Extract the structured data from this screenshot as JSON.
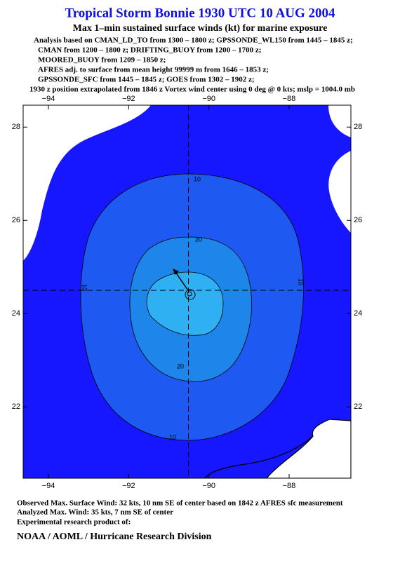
{
  "header": {
    "title": "Tropical Storm Bonnie 1930 UTC 10 AUG 2004",
    "subtitle": "Max 1–min sustained surface winds (kt) for marine exposure",
    "lines": [
      "Analysis based on  CMAN_LD_TO from 1300 – 1800 z;  GPSSONDE_WL150 from 1445 – 1845 z;",
      "CMAN from 1200 – 1800 z;  DRIFTING_BUOY from 1200 – 1700 z;",
      "MOORED_BUOY from 1209 – 1850 z;",
      "AFRES adj. to surface from mean height 99999 m from 1646 – 1853 z;",
      "GPSSONDE_SFC from 1445 – 1845 z;  GOES from 1302 – 1902 z;",
      "1930 z position extrapolated from 1846 z Vortex wind center using 0 deg @ 0 kts; mslp = 1004.0 mb"
    ]
  },
  "map": {
    "xlim": [
      -94.63,
      -86.46
    ],
    "ylim": [
      20.47,
      28.47
    ],
    "xticks": [
      {
        "value": -94,
        "label": "−94"
      },
      {
        "value": -92,
        "label": "−92"
      },
      {
        "value": -90,
        "label": "−90"
      },
      {
        "value": -88,
        "label": "−88"
      }
    ],
    "yticks": [
      22,
      24,
      26,
      28
    ],
    "center": {
      "lon": -90.51,
      "lat": 24.5
    },
    "contour_labels": [
      "10",
      "10",
      "10",
      "20",
      "20",
      "10"
    ]
  },
  "footer": {
    "lines": [
      "Observed Max. Surface Wind: 32 kts, 10 nm SE of center based on 1842 z AFRES sfc measurement",
      "Analyzed Max. Wind: 35 kts, 7 nm SE of center",
      "Experimental research product of:"
    ],
    "org": "NOAA / AOML / Hurricane Research Division"
  }
}
